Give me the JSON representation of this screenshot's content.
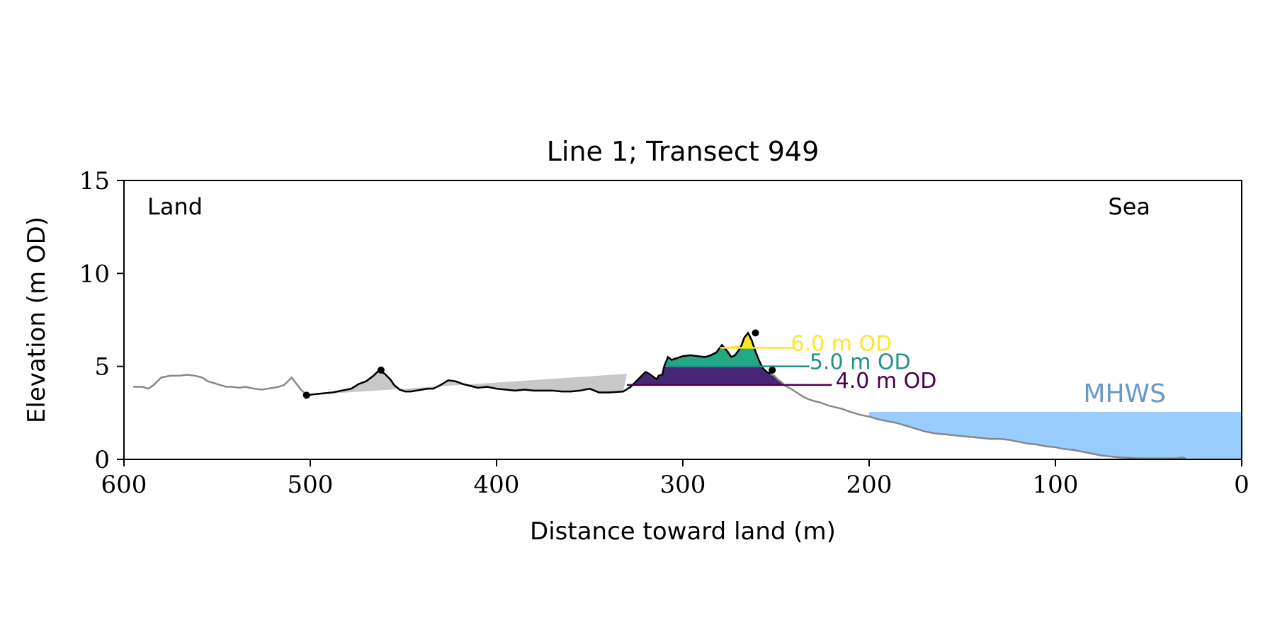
{
  "chart_data": {
    "type": "area",
    "title": "Line 1; Transect 949",
    "xlabel": "Distance toward land (m)",
    "ylabel": "Elevation (m OD)",
    "xlim": [
      600,
      0
    ],
    "ylim": [
      0,
      15
    ],
    "xticks": [
      600,
      500,
      400,
      300,
      200,
      100,
      0
    ],
    "yticks": [
      0,
      5,
      10,
      15
    ],
    "grid": false,
    "corner_labels": {
      "left": "Land",
      "right": "Sea"
    },
    "colors": {
      "full_profile": "#888888",
      "dune_profile": "#000000",
      "gray_fill": "#c8c8c8",
      "mhws_fill": "#99ccff",
      "mhws_text": "#6699cc",
      "level_4": "#440154",
      "level_5": "#21918c",
      "level_6": "#fde725",
      "level_4_fill": "#482677",
      "level_5_fill": "#22a884",
      "level_6_fill": "#fde725"
    },
    "mhws": {
      "label": "MHWS",
      "elevation": 2.55,
      "x_start": 200,
      "x_end": 0
    },
    "water_levels": [
      {
        "label": "4.0 m OD",
        "elevation": 4.0
      },
      {
        "label": "5.0 m OD",
        "elevation": 5.0
      },
      {
        "label": "6.0 m OD",
        "elevation": 6.0
      }
    ],
    "profile": {
      "x": [
        595,
        590,
        587,
        584,
        580,
        575,
        570,
        566,
        562,
        558,
        555,
        550,
        545,
        542,
        538,
        535,
        530,
        526,
        523,
        520,
        517,
        514,
        510,
        505,
        502,
        498,
        493,
        488,
        483,
        478,
        474,
        470,
        466,
        463,
        460,
        457,
        455,
        452,
        449,
        446,
        443,
        440,
        437,
        434,
        430,
        426,
        422,
        418,
        414,
        410,
        405,
        400,
        395,
        390,
        385,
        380,
        375,
        370,
        365,
        360,
        355,
        350,
        345,
        340,
        336,
        332,
        328,
        325,
        322,
        320,
        318,
        316,
        314,
        313,
        311,
        310,
        308,
        306,
        303,
        300,
        296,
        292,
        288,
        285,
        282,
        279,
        276,
        274,
        272,
        269,
        267,
        265,
        263,
        261,
        259,
        257,
        255,
        253,
        251,
        249,
        247,
        245,
        242,
        239,
        236,
        233,
        230,
        226,
        222,
        218,
        214,
        210,
        205,
        200,
        195,
        190,
        185,
        180,
        175,
        170,
        165,
        160,
        155,
        150,
        145,
        140,
        135,
        130,
        125,
        120,
        115,
        110,
        105,
        100,
        95,
        90,
        85,
        80,
        75,
        70,
        65,
        60,
        55,
        50,
        45,
        40,
        35,
        32,
        30
      ],
      "y": [
        3.9,
        3.9,
        3.8,
        4.0,
        4.4,
        4.5,
        4.5,
        4.55,
        4.5,
        4.4,
        4.2,
        4.05,
        3.9,
        3.9,
        3.85,
        3.9,
        3.8,
        3.75,
        3.8,
        3.85,
        3.9,
        4.0,
        4.4,
        3.75,
        3.45,
        3.5,
        3.55,
        3.6,
        3.7,
        3.8,
        4.05,
        4.2,
        4.5,
        4.8,
        4.6,
        4.3,
        4.0,
        3.75,
        3.65,
        3.65,
        3.7,
        3.75,
        3.8,
        3.8,
        4.0,
        4.25,
        4.2,
        4.05,
        3.95,
        3.85,
        3.9,
        3.8,
        3.75,
        3.7,
        3.75,
        3.7,
        3.7,
        3.7,
        3.65,
        3.65,
        3.7,
        3.8,
        3.6,
        3.6,
        3.62,
        3.65,
        3.9,
        4.2,
        4.5,
        4.7,
        4.6,
        4.45,
        4.3,
        4.5,
        4.55,
        5.0,
        5.5,
        5.35,
        5.45,
        5.55,
        5.6,
        5.55,
        5.5,
        5.6,
        5.75,
        6.15,
        5.8,
        5.5,
        5.6,
        6.0,
        6.55,
        6.8,
        6.4,
        5.8,
        5.3,
        4.9,
        4.7,
        4.6,
        4.5,
        4.3,
        4.15,
        3.95,
        3.8,
        3.6,
        3.4,
        3.25,
        3.15,
        3.05,
        2.9,
        2.8,
        2.7,
        2.55,
        2.4,
        2.3,
        2.15,
        2.05,
        1.95,
        1.8,
        1.65,
        1.5,
        1.4,
        1.35,
        1.3,
        1.25,
        1.2,
        1.15,
        1.1,
        1.1,
        1.05,
        0.95,
        0.85,
        0.8,
        0.7,
        0.65,
        0.55,
        0.5,
        0.4,
        0.3,
        0.2,
        0.15,
        0.1,
        0.08,
        0.05,
        0.05,
        0.05,
        0.05,
        0.05,
        0.1,
        0.05
      ]
    },
    "dune_profile": {
      "x_start": 502,
      "x_end": 252
    },
    "dune_points": [
      {
        "x": 502,
        "y": 3.45
      },
      {
        "x": 462,
        "y": 4.8
      },
      {
        "x": 261,
        "y": 6.8
      },
      {
        "x": 252,
        "y": 4.8
      }
    ],
    "gray_baseline": {
      "x1": 502,
      "y1": 3.45,
      "x2": 330,
      "y2": 4.6
    }
  }
}
